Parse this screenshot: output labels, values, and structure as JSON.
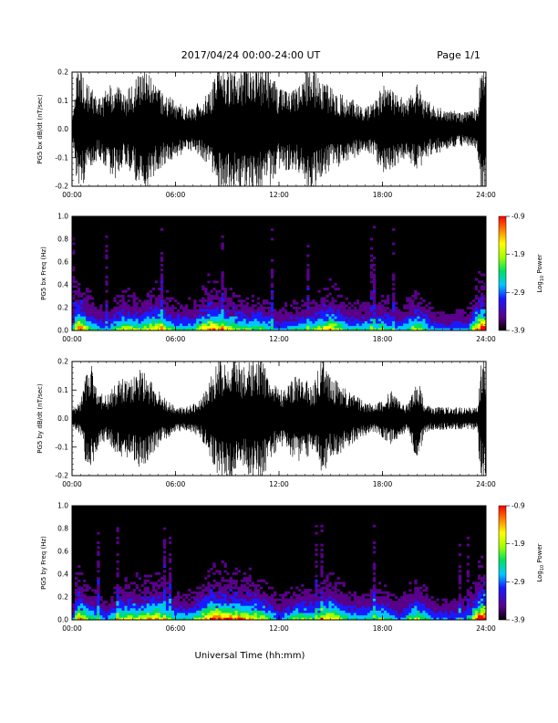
{
  "header": {
    "title": "2017/04/24  00:00-24:00 UT",
    "page": "Page 1/1"
  },
  "xaxis_label": "Universal Time (hh:mm)",
  "colors": {
    "trace": "#000000",
    "spectrogram_background": "#000000",
    "colorbar": [
      "#000000",
      "#5a008a",
      "#1a1aff",
      "#00c8ff",
      "#00e060",
      "#a0ff00",
      "#ffff00",
      "#ff8000",
      "#ff0000"
    ]
  },
  "chart_data": [
    {
      "type": "line",
      "title": "",
      "xlabel": "",
      "ylabel": "PG5 bx dB/dt (nT/sec)",
      "xlim": [
        "00:00",
        "24:00"
      ],
      "ylim": [
        -0.2,
        0.2
      ],
      "xticks": [
        "00:00",
        "06:00",
        "12:00",
        "18:00",
        "24:00"
      ],
      "yticks": [
        "-0.2",
        "-0.1",
        "0.0",
        "0.1",
        "0.2"
      ],
      "series": [
        {
          "amplitude_envelope": {
            "x_hours": [
              0,
              0.3,
              0.6,
              1.0,
              1.5,
              2.0,
              2.5,
              3.0,
              3.5,
              4.0,
              4.5,
              5.0,
              5.5,
              6.0,
              6.5,
              7.0,
              7.5,
              8.0,
              8.5,
              9.0,
              9.5,
              10.0,
              10.5,
              11.0,
              11.5,
              12.0,
              12.5,
              13.0,
              13.5,
              14.0,
              14.5,
              15.0,
              15.5,
              16.0,
              16.5,
              17.0,
              17.5,
              18.0,
              18.5,
              19.0,
              19.5,
              20.0,
              20.5,
              21.0,
              21.5,
              22.0,
              22.5,
              23.0,
              23.5,
              23.7,
              24.0
            ],
            "y_abs_max": [
              0.04,
              0.22,
              0.21,
              0.16,
              0.1,
              0.14,
              0.18,
              0.12,
              0.16,
              0.22,
              0.2,
              0.15,
              0.12,
              0.1,
              0.09,
              0.08,
              0.1,
              0.14,
              0.22,
              0.22,
              0.22,
              0.22,
              0.22,
              0.22,
              0.2,
              0.14,
              0.15,
              0.15,
              0.2,
              0.22,
              0.17,
              0.15,
              0.13,
              0.11,
              0.1,
              0.08,
              0.09,
              0.16,
              0.14,
              0.12,
              0.11,
              0.16,
              0.1,
              0.09,
              0.08,
              0.07,
              0.06,
              0.06,
              0.08,
              0.22,
              0.22
            ]
          }
        }
      ]
    },
    {
      "type": "heatmap",
      "title": "",
      "xlabel": "",
      "ylabel": "PG5 bx Freq (Hz)",
      "xlim": [
        "00:00",
        "24:00"
      ],
      "ylim": [
        0.0,
        1.0
      ],
      "xticks": [
        "00:00",
        "06:00",
        "12:00",
        "18:00",
        "24:00"
      ],
      "yticks": [
        "0.0",
        "0.2",
        "0.4",
        "0.6",
        "0.8",
        "1.0"
      ],
      "colorbar": {
        "label": "Log10 Power",
        "range": [
          -3.9,
          -0.9
        ],
        "ticks": [
          "-0.9",
          "-1.9",
          "-2.9",
          "-3.9"
        ]
      },
      "intensity_profile": {
        "x_hours": [
          0,
          0.3,
          1,
          2,
          3,
          4,
          5,
          6,
          7,
          8,
          9,
          10,
          11,
          12,
          13,
          14,
          15,
          16,
          17,
          18,
          19,
          20,
          21,
          22,
          23,
          23.7,
          24
        ],
        "relative_power": [
          0.1,
          0.9,
          0.5,
          0.3,
          0.6,
          0.5,
          0.7,
          0.4,
          0.4,
          0.8,
          0.6,
          0.5,
          0.5,
          0.3,
          0.4,
          0.5,
          0.7,
          0.4,
          0.4,
          0.5,
          0.3,
          0.6,
          0.3,
          0.3,
          0.3,
          0.95,
          0.9
        ]
      }
    },
    {
      "type": "line",
      "title": "",
      "xlabel": "",
      "ylabel": "PG5 by dB/dt (nT/sec)",
      "xlim": [
        "00:00",
        "24:00"
      ],
      "ylim": [
        -0.2,
        0.2
      ],
      "xticks": [
        "00:00",
        "06:00",
        "12:00",
        "18:00",
        "24:00"
      ],
      "yticks": [
        "-0.2",
        "-0.1",
        "0.0",
        "0.1",
        "0.2"
      ],
      "series": [
        {
          "amplitude_envelope": {
            "x_hours": [
              0,
              0.5,
              1.0,
              1.5,
              2.0,
              2.5,
              3.0,
              3.5,
              4.0,
              4.5,
              5.0,
              5.5,
              6.0,
              6.5,
              7.0,
              7.5,
              8.0,
              8.5,
              9.0,
              9.5,
              10.0,
              10.5,
              11.0,
              11.5,
              12.0,
              12.5,
              13.0,
              13.5,
              14.0,
              14.5,
              15.0,
              15.5,
              16.0,
              16.5,
              17.0,
              17.5,
              18.0,
              18.5,
              19.0,
              19.5,
              20.0,
              20.5,
              21.0,
              21.5,
              22.0,
              22.5,
              23.0,
              23.5,
              23.7,
              24.0
            ],
            "y_abs_max": [
              0.03,
              0.06,
              0.22,
              0.1,
              0.08,
              0.12,
              0.15,
              0.14,
              0.18,
              0.14,
              0.1,
              0.07,
              0.05,
              0.04,
              0.05,
              0.07,
              0.14,
              0.22,
              0.22,
              0.22,
              0.18,
              0.22,
              0.22,
              0.15,
              0.1,
              0.12,
              0.16,
              0.14,
              0.12,
              0.22,
              0.14,
              0.13,
              0.1,
              0.08,
              0.06,
              0.05,
              0.07,
              0.1,
              0.06,
              0.05,
              0.15,
              0.05,
              0.04,
              0.04,
              0.04,
              0.04,
              0.04,
              0.04,
              0.22,
              0.22
            ]
          }
        }
      ]
    },
    {
      "type": "heatmap",
      "title": "",
      "xlabel": "Universal Time (hh:mm)",
      "ylabel": "PG5 by Freq (Hz)",
      "xlim": [
        "00:00",
        "24:00"
      ],
      "ylim": [
        0.0,
        1.0
      ],
      "xticks": [
        "00:00",
        "06:00",
        "12:00",
        "18:00",
        "24:00"
      ],
      "yticks": [
        "0.0",
        "0.2",
        "0.4",
        "0.6",
        "0.8",
        "1.0"
      ],
      "colorbar": {
        "label": "Log10 Power",
        "range": [
          -3.9,
          -0.9
        ],
        "ticks": [
          "-0.9",
          "-1.9",
          "-2.9",
          "-3.9"
        ]
      },
      "intensity_profile": {
        "x_hours": [
          0,
          0.3,
          1,
          2,
          3,
          4,
          5,
          6,
          7,
          8,
          9,
          10,
          11,
          12,
          13,
          14,
          15,
          16,
          17,
          18,
          19,
          20,
          21,
          22,
          23,
          23.7,
          24
        ],
        "relative_power": [
          0.1,
          0.8,
          0.5,
          0.3,
          0.6,
          0.6,
          0.7,
          0.4,
          0.4,
          0.8,
          0.8,
          0.7,
          0.6,
          0.3,
          0.5,
          0.5,
          0.7,
          0.4,
          0.4,
          0.5,
          0.3,
          0.6,
          0.3,
          0.3,
          0.3,
          0.95,
          0.9
        ]
      }
    }
  ]
}
